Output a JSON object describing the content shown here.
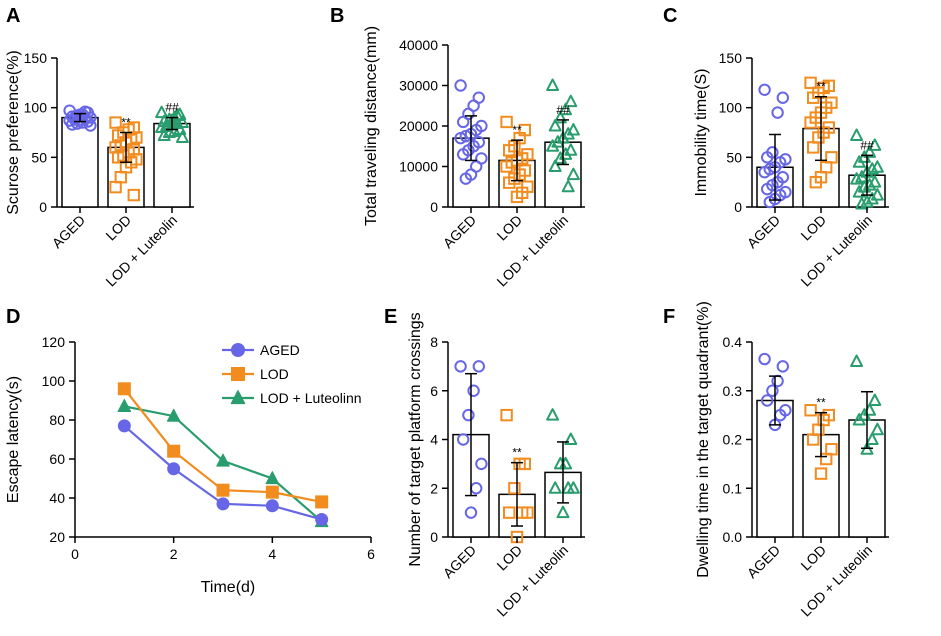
{
  "colors": {
    "aged": "#6666e6",
    "lod": "#f28c1e",
    "luteolin": "#2a9d6e",
    "axis": "#000000"
  },
  "chart_data": [
    {
      "panel": "A",
      "type": "bar",
      "ylabel": "Scurose preference(%)",
      "ylim": [
        0,
        150
      ],
      "yticks": [
        0,
        50,
        100,
        150
      ],
      "categories": [
        "AGED",
        "LOD",
        "LOD + Luteolin"
      ],
      "values": [
        90,
        60,
        84
      ],
      "sd": [
        4,
        15,
        6
      ],
      "annotations": [
        "",
        "**",
        "##"
      ],
      "points": [
        [
          97,
          95,
          93,
          92,
          91,
          90,
          89,
          88,
          88,
          87,
          86,
          85,
          84,
          83,
          82,
          96,
          93,
          90
        ],
        [
          85,
          80,
          78,
          75,
          72,
          70,
          68,
          65,
          62,
          60,
          58,
          55,
          52,
          50,
          48,
          45,
          40,
          30,
          20,
          12
        ],
        [
          95,
          93,
          90,
          88,
          86,
          85,
          84,
          83,
          82,
          80,
          78,
          76,
          75,
          72,
          70,
          92,
          87,
          81
        ]
      ],
      "markers": [
        "circle",
        "square",
        "triangle"
      ]
    },
    {
      "panel": "B",
      "type": "bar",
      "ylabel": "Total traveling distance(mm)",
      "ylim": [
        0,
        40000
      ],
      "yticks": [
        0,
        10000,
        20000,
        30000,
        40000
      ],
      "categories": [
        "AGED",
        "LOD",
        "LOD + Luteolin"
      ],
      "values": [
        17000,
        11500,
        16000
      ],
      "sd": [
        5500,
        5000,
        5500
      ],
      "annotations": [
        "",
        "**",
        "##"
      ],
      "points": [
        [
          30000,
          27000,
          25000,
          23000,
          21000,
          20000,
          19000,
          18000,
          17500,
          17000,
          16000,
          15000,
          14000,
          13000,
          12000,
          10000,
          8000,
          7000
        ],
        [
          21000,
          19000,
          17000,
          15000,
          14000,
          13000,
          12000,
          11500,
          11000,
          10000,
          9000,
          8000,
          7000,
          6000,
          5000,
          3500,
          2500
        ],
        [
          30000,
          26000,
          24000,
          22000,
          20000,
          19000,
          18000,
          17000,
          16000,
          15000,
          14000,
          13000,
          12000,
          10000,
          8000,
          5000
        ]
      ],
      "markers": [
        "circle",
        "square",
        "triangle"
      ]
    },
    {
      "panel": "C",
      "type": "bar",
      "ylabel": "Immobility time(S)",
      "ylim": [
        0,
        150
      ],
      "yticks": [
        0,
        50,
        100,
        150
      ],
      "categories": [
        "AGED",
        "LOD",
        "LOD + Luteolin"
      ],
      "values": [
        40,
        79,
        32
      ],
      "sd": [
        33,
        32,
        20
      ],
      "annotations": [
        "",
        "**",
        "##"
      ],
      "points": [
        [
          118,
          110,
          95,
          55,
          50,
          48,
          45,
          40,
          38,
          35,
          30,
          25,
          22,
          18,
          15,
          12,
          8,
          5
        ],
        [
          125,
          122,
          120,
          115,
          110,
          105,
          100,
          95,
          90,
          85,
          80,
          75,
          70,
          60,
          50,
          40,
          30,
          25
        ],
        [
          72,
          62,
          55,
          50,
          45,
          40,
          38,
          35,
          30,
          28,
          25,
          22,
          20,
          15,
          12,
          8,
          5,
          3
        ]
      ],
      "markers": [
        "circle",
        "square",
        "triangle"
      ]
    },
    {
      "panel": "D",
      "type": "line",
      "xlabel": "Time(d)",
      "ylabel": "Escape latency(s)",
      "xlim": [
        0,
        6
      ],
      "xticks": [
        0,
        2,
        4,
        6
      ],
      "ylim": [
        20,
        120
      ],
      "yticks": [
        20,
        40,
        60,
        80,
        100,
        120
      ],
      "x": [
        1,
        2,
        3,
        4,
        5
      ],
      "series": [
        {
          "name": "AGED",
          "values": [
            77,
            55,
            37,
            36,
            29
          ],
          "marker": "circle"
        },
        {
          "name": "LOD",
          "values": [
            96,
            64,
            44,
            43,
            38
          ],
          "marker": "square"
        },
        {
          "name": "LOD + Luteolinn",
          "values": [
            87,
            82,
            59,
            50,
            28
          ],
          "marker": "triangle"
        }
      ]
    },
    {
      "panel": "E",
      "type": "bar",
      "ylabel": "Number of target platform crossings",
      "ylim": [
        0,
        8
      ],
      "yticks": [
        0,
        2,
        4,
        6,
        8
      ],
      "categories": [
        "AGED",
        "LOD",
        "LOD + Luteolin"
      ],
      "values": [
        4.2,
        1.75,
        2.65
      ],
      "sd": [
        2.5,
        1.3,
        1.25
      ],
      "annotations": [
        "",
        "**",
        ""
      ],
      "points": [
        [
          7,
          7,
          6,
          5,
          4,
          3,
          2,
          1
        ],
        [
          5,
          3,
          3,
          2,
          1,
          1,
          1,
          0
        ],
        [
          5,
          4,
          3,
          3,
          2,
          2,
          2,
          1
        ]
      ],
      "markers": [
        "circle",
        "square",
        "triangle"
      ]
    },
    {
      "panel": "F",
      "type": "bar",
      "ylabel": "Dwelling time in the target quadrant(%)",
      "ylim": [
        0.0,
        0.4
      ],
      "yticks": [
        0.0,
        0.1,
        0.2,
        0.3,
        0.4
      ],
      "categories": [
        "AGED",
        "LOD",
        "LOD + Luteolin"
      ],
      "values": [
        0.28,
        0.21,
        0.24
      ],
      "sd": [
        0.05,
        0.045,
        0.058
      ],
      "annotations": [
        "",
        "**",
        ""
      ],
      "points": [
        [
          0.365,
          0.35,
          0.32,
          0.3,
          0.28,
          0.26,
          0.25,
          0.23
        ],
        [
          0.26,
          0.25,
          0.24,
          0.22,
          0.2,
          0.18,
          0.16,
          0.13
        ],
        [
          0.36,
          0.28,
          0.26,
          0.25,
          0.24,
          0.22,
          0.2,
          0.18
        ]
      ],
      "markers": [
        "circle",
        "square",
        "triangle"
      ]
    }
  ],
  "panel_labels": [
    "A",
    "B",
    "C",
    "D",
    "E",
    "F"
  ]
}
